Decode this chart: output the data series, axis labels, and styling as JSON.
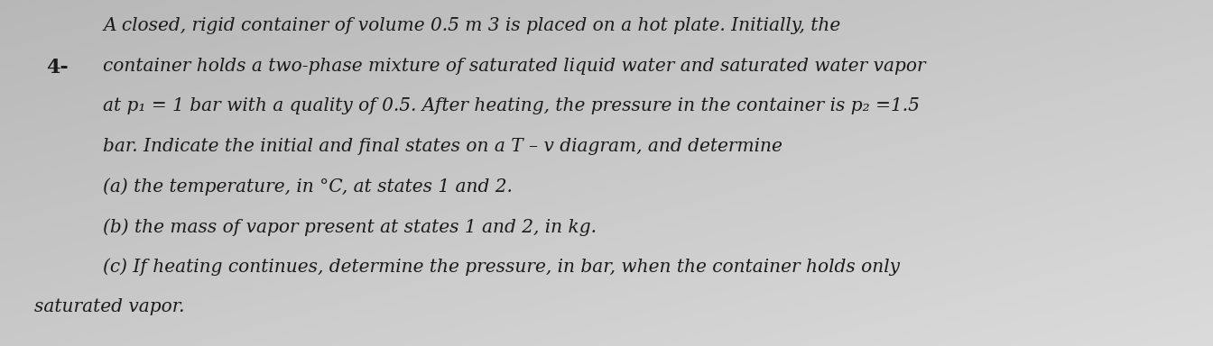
{
  "background_color": "#c8c8c8",
  "text_color": "#1a1a1a",
  "problem_number": "4-",
  "lines": [
    {
      "text": "A closed, rigid container of volume 0.5 m 3 is placed on a hot plate. Initially, the",
      "style": "italic",
      "fontsize": 14.5,
      "fontfamily": "DejaVu Serif"
    },
    {
      "text": "container holds a two-phase mixture of saturated liquid water and saturated water vapor",
      "style": "italic",
      "fontsize": 14.5,
      "fontfamily": "DejaVu Serif"
    },
    {
      "text": "at p₁ = 1 bar with a quality of 0.5. After heating, the pressure in the container is p₂ =1.5",
      "style": "italic",
      "fontsize": 14.5,
      "fontfamily": "DejaVu Serif"
    },
    {
      "text": "bar. Indicate the initial and final states on a T – v diagram, and determine",
      "style": "italic",
      "fontsize": 14.5,
      "fontfamily": "DejaVu Serif"
    },
    {
      "text": "(a) the temperature, in °C, at states 1 and 2.",
      "style": "italic",
      "fontsize": 14.5,
      "fontfamily": "DejaVu Serif"
    },
    {
      "text": "(b) the mass of vapor present at states 1 and 2, in kg.",
      "style": "italic",
      "fontsize": 14.5,
      "fontfamily": "DejaVu Serif"
    },
    {
      "text": "(c) If heating continues, determine the pressure, in bar, when the container holds only",
      "style": "italic",
      "fontsize": 14.5,
      "fontfamily": "DejaVu Serif"
    },
    {
      "text": "saturated vapor.",
      "style": "italic",
      "fontsize": 14.5,
      "fontfamily": "DejaVu Serif"
    }
  ],
  "number_fontsize": 16,
  "number_fontweight": "bold",
  "grad_top_left": "#b8b8b8",
  "grad_bottom_right": "#e8e8e8"
}
